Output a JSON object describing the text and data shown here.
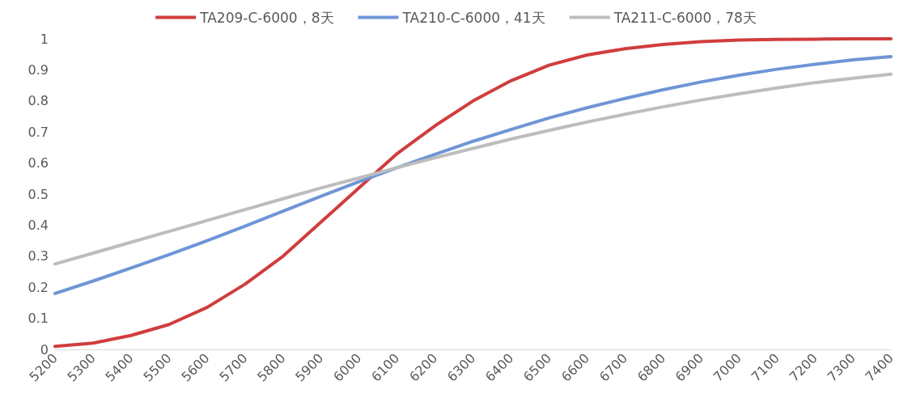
{
  "chart_data": {
    "type": "line",
    "categories": [
      "5200",
      "5300",
      "5400",
      "5500",
      "5600",
      "5700",
      "5800",
      "5900",
      "6000",
      "6100",
      "6200",
      "6300",
      "6400",
      "6500",
      "6600",
      "6700",
      "6800",
      "6900",
      "7000",
      "7100",
      "7200",
      "7300",
      "7400"
    ],
    "series": [
      {
        "name": "TA209-C-6000，8天",
        "color": "#d03d3e",
        "values": [
          0.01,
          0.02,
          0.045,
          0.08,
          0.135,
          0.21,
          0.3,
          0.41,
          0.52,
          0.63,
          0.72,
          0.8,
          0.865,
          0.915,
          0.948,
          0.968,
          0.982,
          0.991,
          0.996,
          0.998,
          0.999,
          1,
          1
        ]
      },
      {
        "name": "TA210-C-6000，41天",
        "color": "#6f95d6",
        "values": [
          0.18,
          0.22,
          0.262,
          0.305,
          0.35,
          0.397,
          0.445,
          0.493,
          0.54,
          0.585,
          0.628,
          0.67,
          0.708,
          0.745,
          0.778,
          0.808,
          0.836,
          0.861,
          0.883,
          0.902,
          0.918,
          0.932,
          0.943
        ]
      },
      {
        "name": "TA211-C-6000，78天",
        "color": "#bdbdbd",
        "values": [
          0.275,
          0.31,
          0.345,
          0.38,
          0.415,
          0.45,
          0.485,
          0.52,
          0.552,
          0.585,
          0.617,
          0.647,
          0.677,
          0.705,
          0.732,
          0.757,
          0.781,
          0.803,
          0.823,
          0.842,
          0.859,
          0.873,
          0.886
        ]
      }
    ],
    "ylim": [
      0,
      1
    ],
    "yticks": [
      0,
      0.1,
      0.2,
      0.3,
      0.4,
      0.5,
      0.6,
      0.7,
      0.8,
      0.9,
      1
    ],
    "grid": false,
    "legend": "top",
    "marker": "none",
    "line_style": "solid"
  }
}
